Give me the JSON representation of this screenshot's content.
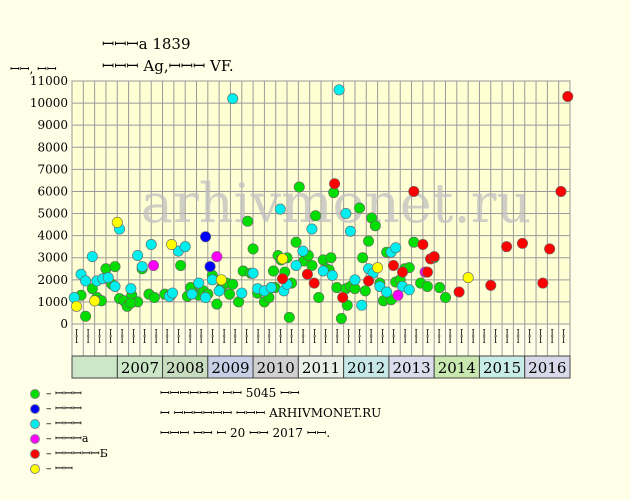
{
  "header": {
    "title": "ꟷꟷꟷa 1839",
    "subtitle": "ꟷꟷꟷ Ag,ꟷꟷꟷ VF."
  },
  "chart_data": {
    "type": "scatter",
    "ylabel": "ꟷꟷ, ꟷꟷ",
    "ylim": [
      0,
      11000
    ],
    "yticks": [
      0,
      1000,
      2000,
      3000,
      4000,
      5000,
      6000,
      7000,
      8000,
      9000,
      10000,
      11000
    ],
    "grid": true,
    "watermark": "arhivmonet.ru",
    "x_range": [
      2006.0,
      2017.0
    ],
    "half_year_labels": [
      "ꟷꟷ",
      "ꟷꟷ",
      "ꟷꟷ",
      "ꟷꟷ",
      "ꟷꟷ",
      "ꟷꟷ",
      "ꟷꟷ",
      "ꟷꟷ",
      "ꟷꟷ",
      "ꟷꟷ",
      "ꟷꟷ",
      "ꟷꟷ",
      "ꟷꟷ",
      "ꟷꟷ",
      "ꟷꟷ",
      "ꟷꟷ",
      "ꟷꟷ",
      "ꟷꟷ",
      "ꟷꟷ",
      "ꟷꟷ",
      "ꟷꟷ",
      "ꟷꟷ",
      "ꟷꟷ",
      "ꟷꟷ",
      "ꟷꟷ",
      "ꟷꟷ",
      "ꟷꟷ",
      "ꟷꟷ",
      "ꟷꟷ",
      "ꟷꟷ",
      "ꟷꟷ",
      "ꟷꟷ",
      "ꟷꟷ",
      "ꟷꟷ",
      "ꟷꟷ",
      "ꟷꟷ",
      "ꟷꟷ",
      "ꟷꟷ",
      "ꟷꟷ",
      "ꟷꟷ",
      "ꟷꟷ",
      "ꟷꟷ",
      "ꟷꟷ",
      "ꟷꟷ"
    ],
    "years": [
      {
        "label": "2007",
        "from": 2007.0,
        "to": 2008.0,
        "color": "#cce6c8"
      },
      {
        "label": "2008",
        "from": 2008.0,
        "to": 2009.0,
        "color": "#c8dcc0"
      },
      {
        "label": "2009",
        "from": 2009.0,
        "to": 2010.0,
        "color": "#c8d0e8"
      },
      {
        "label": "2010",
        "from": 2010.0,
        "to": 2011.0,
        "color": "#d0d0d0"
      },
      {
        "label": "2011",
        "from": 2011.0,
        "to": 2012.0,
        "color": "#e8f0e8"
      },
      {
        "label": "2012",
        "from": 2012.0,
        "to": 2013.0,
        "color": "#c8e8e8"
      },
      {
        "label": "2013",
        "from": 2013.0,
        "to": 2014.0,
        "color": "#dcdcec"
      },
      {
        "label": "2014",
        "from": 2014.0,
        "to": 2015.0,
        "color": "#c8e8b0"
      },
      {
        "label": "2015",
        "from": 2015.0,
        "to": 2016.0,
        "color": "#c8ece8"
      },
      {
        "label": "2016",
        "from": 2016.0,
        "to": 2017.0,
        "color": "#d8d8e8"
      }
    ],
    "series": [
      {
        "name": "– ꟷꟷꟷ",
        "color": "#00dd00",
        "points": [
          [
            2006.2,
            1300
          ],
          [
            2006.3,
            350
          ],
          [
            2006.55,
            1200
          ],
          [
            2006.65,
            1050
          ],
          [
            2006.75,
            2500
          ],
          [
            2006.88,
            1800
          ],
          [
            2006.95,
            2600
          ],
          [
            2007.05,
            1150
          ],
          [
            2007.15,
            1050
          ],
          [
            2007.22,
            800
          ],
          [
            2007.32,
            1300
          ],
          [
            2007.45,
            1000
          ],
          [
            2007.55,
            2500
          ],
          [
            2007.7,
            1350
          ],
          [
            2007.82,
            1200
          ],
          [
            2008.05,
            1350
          ],
          [
            2008.18,
            1300
          ],
          [
            2008.4,
            2650
          ],
          [
            2008.55,
            1250
          ],
          [
            2008.7,
            1400
          ],
          [
            2008.8,
            1300
          ],
          [
            2008.9,
            1500
          ],
          [
            2009.0,
            1350
          ],
          [
            2009.1,
            2200
          ],
          [
            2009.2,
            900
          ],
          [
            2009.3,
            1650
          ],
          [
            2009.42,
            1850
          ],
          [
            2009.55,
            1800
          ],
          [
            2009.68,
            1000
          ],
          [
            2009.78,
            2400
          ],
          [
            2009.88,
            4650
          ],
          [
            2009.95,
            2300
          ],
          [
            2010.0,
            3400
          ],
          [
            2010.1,
            1400
          ],
          [
            2010.25,
            1000
          ],
          [
            2010.35,
            1200
          ],
          [
            2010.45,
            2400
          ],
          [
            2010.55,
            3100
          ],
          [
            2010.62,
            2900
          ],
          [
            2010.7,
            2350
          ],
          [
            2010.75,
            3000
          ],
          [
            2010.8,
            300
          ],
          [
            2010.85,
            1850
          ],
          [
            2010.95,
            3700
          ],
          [
            2011.02,
            6200
          ],
          [
            2011.12,
            2850
          ],
          [
            2011.22,
            3100
          ],
          [
            2011.3,
            2650
          ],
          [
            2011.38,
            4900
          ],
          [
            2011.45,
            1200
          ],
          [
            2011.55,
            2900
          ],
          [
            2011.62,
            2500
          ],
          [
            2011.72,
            3000
          ],
          [
            2011.78,
            5950
          ],
          [
            2011.85,
            1650
          ],
          [
            2011.95,
            250
          ],
          [
            2012.05,
            1600
          ],
          [
            2012.15,
            1700
          ],
          [
            2012.25,
            1600
          ],
          [
            2012.35,
            5250
          ],
          [
            2012.42,
            3000
          ],
          [
            2012.48,
            1500
          ],
          [
            2012.55,
            3750
          ],
          [
            2012.62,
            4800
          ],
          [
            2012.7,
            4450
          ],
          [
            2012.8,
            1850
          ],
          [
            2012.88,
            1050
          ],
          [
            2012.95,
            3250
          ],
          [
            2013.05,
            1100
          ],
          [
            2013.15,
            1900
          ],
          [
            2013.25,
            2000
          ],
          [
            2013.35,
            2500
          ],
          [
            2013.45,
            2550
          ],
          [
            2013.55,
            3700
          ],
          [
            2013.7,
            1850
          ],
          [
            2013.85,
            1700
          ],
          [
            2014.0,
            3000
          ],
          [
            2014.12,
            1650
          ],
          [
            2014.25,
            1200
          ],
          [
            2006.45,
            1600
          ],
          [
            2007.3,
            950
          ],
          [
            2008.62,
            1650
          ],
          [
            2009.48,
            1350
          ],
          [
            2010.48,
            1650
          ],
          [
            2011.68,
            2450
          ],
          [
            2012.08,
            850
          ]
        ]
      },
      {
        "name": "– ꟷꟷꟷ",
        "color": "#0000ff",
        "points": [
          [
            2008.95,
            3950
          ],
          [
            2009.05,
            2600
          ]
        ]
      },
      {
        "name": "– ꟷꟷꟷ",
        "color": "#00eeee",
        "points": [
          [
            2006.05,
            1200
          ],
          [
            2006.2,
            2250
          ],
          [
            2006.3,
            1950
          ],
          [
            2006.45,
            3050
          ],
          [
            2006.55,
            1950
          ],
          [
            2006.68,
            2050
          ],
          [
            2006.8,
            2100
          ],
          [
            2006.95,
            1700
          ],
          [
            2007.05,
            4300
          ],
          [
            2007.3,
            1600
          ],
          [
            2007.45,
            3100
          ],
          [
            2007.55,
            2600
          ],
          [
            2007.75,
            3600
          ],
          [
            2008.15,
            1250
          ],
          [
            2008.22,
            1400
          ],
          [
            2008.35,
            3300
          ],
          [
            2008.5,
            3500
          ],
          [
            2008.65,
            1350
          ],
          [
            2008.8,
            1850
          ],
          [
            2008.95,
            1200
          ],
          [
            2009.1,
            2000
          ],
          [
            2009.25,
            1500
          ],
          [
            2009.55,
            10200
          ],
          [
            2009.75,
            1400
          ],
          [
            2010.0,
            2300
          ],
          [
            2010.1,
            1600
          ],
          [
            2010.25,
            1500
          ],
          [
            2010.4,
            1650
          ],
          [
            2010.6,
            5200
          ],
          [
            2010.68,
            1500
          ],
          [
            2010.75,
            1800
          ],
          [
            2010.95,
            2650
          ],
          [
            2011.1,
            3300
          ],
          [
            2011.3,
            4300
          ],
          [
            2011.55,
            2400
          ],
          [
            2011.75,
            2200
          ],
          [
            2011.9,
            10600
          ],
          [
            2012.05,
            5000
          ],
          [
            2012.15,
            4200
          ],
          [
            2012.25,
            2000
          ],
          [
            2012.4,
            850
          ],
          [
            2012.55,
            2500
          ],
          [
            2012.65,
            2300
          ],
          [
            2012.8,
            1700
          ],
          [
            2012.95,
            1450
          ],
          [
            2013.05,
            3250
          ],
          [
            2013.15,
            3450
          ],
          [
            2013.3,
            1700
          ],
          [
            2013.45,
            1550
          ]
        ]
      },
      {
        "name": "– ꟷꟷꟷa",
        "color": "#ff00ff",
        "points": [
          [
            2007.8,
            2650
          ],
          [
            2009.2,
            3050
          ],
          [
            2013.2,
            1300
          ],
          [
            2013.8,
            2350
          ]
        ]
      },
      {
        "name": "– ꟷꟷꟷꟷꟷБ",
        "color": "#ff0000",
        "points": [
          [
            2010.65,
            2050
          ],
          [
            2011.2,
            2250
          ],
          [
            2011.35,
            1850
          ],
          [
            2011.8,
            6350
          ],
          [
            2011.98,
            1200
          ],
          [
            2012.55,
            1950
          ],
          [
            2013.1,
            2650
          ],
          [
            2013.3,
            2350
          ],
          [
            2013.55,
            6000
          ],
          [
            2013.75,
            3600
          ],
          [
            2013.85,
            2350
          ],
          [
            2013.92,
            2950
          ],
          [
            2014.0,
            3050
          ],
          [
            2014.55,
            1450
          ],
          [
            2015.25,
            1750
          ],
          [
            2015.6,
            3500
          ],
          [
            2015.95,
            3650
          ],
          [
            2016.4,
            1850
          ],
          [
            2016.55,
            3400
          ],
          [
            2016.8,
            6000
          ],
          [
            2016.95,
            10300
          ]
        ]
      },
      {
        "name": "– ꟷꟷ",
        "color": "#ffff00",
        "points": [
          [
            2006.1,
            800
          ],
          [
            2006.5,
            1050
          ],
          [
            2007.0,
            4600
          ],
          [
            2008.2,
            3600
          ],
          [
            2009.3,
            2000
          ],
          [
            2010.65,
            2950
          ],
          [
            2012.75,
            2550
          ],
          [
            2014.75,
            2100
          ]
        ]
      }
    ]
  },
  "info": {
    "line1": "ꟷꟷꟷꟷꟷꟷ ꟷꟷ 5045 ꟷꟷ",
    "line2": "ꟷ ꟷꟷꟷꟷꟷꟷ ꟷꟷꟷ ARHIVMONET.RU",
    "line3": "ꟷꟷꟷ ꟷꟷ ꟷ 20 ꟷꟷ 2017 ꟷꟷ."
  }
}
